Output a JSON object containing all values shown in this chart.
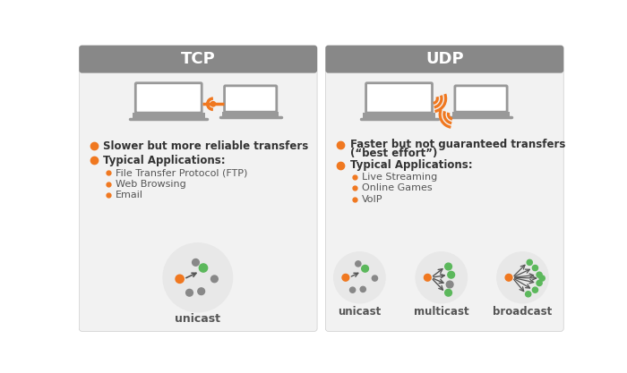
{
  "bg_color": "#ffffff",
  "header_color": "#888888",
  "card_bg": "#f2f2f2",
  "card_bg_inner": "#f7f7f7",
  "orange": "#f07820",
  "green": "#5cb85c",
  "gray_node": "#888888",
  "tcp_title": "TCP",
  "udp_title": "UDP",
  "tcp_bullet1": "Slower but more reliable transfers",
  "tcp_bullet2": "Typical Applications:",
  "tcp_sub1": "File Transfer Protocol (FTP)",
  "tcp_sub2": "Web Browsing",
  "tcp_sub3": "Email",
  "udp_bullet1a": "Faster but not guaranteed transfers",
  "udp_bullet1b": "(“best effort”)",
  "udp_bullet2": "Typical Applications:",
  "udp_sub1": "Live Streaming",
  "udp_sub2": "Online Games",
  "udp_sub3": "VoIP",
  "laptop_color": "#999999",
  "circle_bg": "#e8e8e8",
  "arrow_color": "#666666",
  "label_color": "#555555",
  "text_color": "#333333",
  "sub_text_color": "#555555"
}
